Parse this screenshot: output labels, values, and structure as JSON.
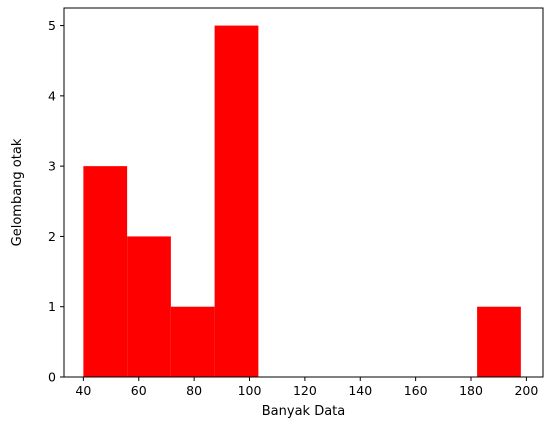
{
  "chart_data": {
    "type": "histogram",
    "title": "",
    "xlabel": "Banyak Data",
    "ylabel": "Gelombang otak",
    "bar_color": "#ff0000",
    "xlim": [
      33,
      206
    ],
    "ylim": [
      0,
      5.25
    ],
    "x_ticks": [
      40,
      60,
      80,
      100,
      120,
      140,
      160,
      180,
      200
    ],
    "y_ticks": [
      0,
      1,
      2,
      3,
      4,
      5
    ],
    "bins": [
      {
        "x0": 40,
        "x1": 55.8,
        "count": 3
      },
      {
        "x0": 55.8,
        "x1": 71.6,
        "count": 2
      },
      {
        "x0": 71.6,
        "x1": 87.4,
        "count": 1
      },
      {
        "x0": 87.4,
        "x1": 103.2,
        "count": 5
      },
      {
        "x0": 103.2,
        "x1": 119,
        "count": 0
      },
      {
        "x0": 119,
        "x1": 134.8,
        "count": 0
      },
      {
        "x0": 134.8,
        "x1": 150.6,
        "count": 0
      },
      {
        "x0": 150.6,
        "x1": 166.4,
        "count": 0
      },
      {
        "x0": 166.4,
        "x1": 182.2,
        "count": 0
      },
      {
        "x0": 182.2,
        "x1": 198,
        "count": 1
      }
    ],
    "grid": false,
    "legend": "none"
  }
}
